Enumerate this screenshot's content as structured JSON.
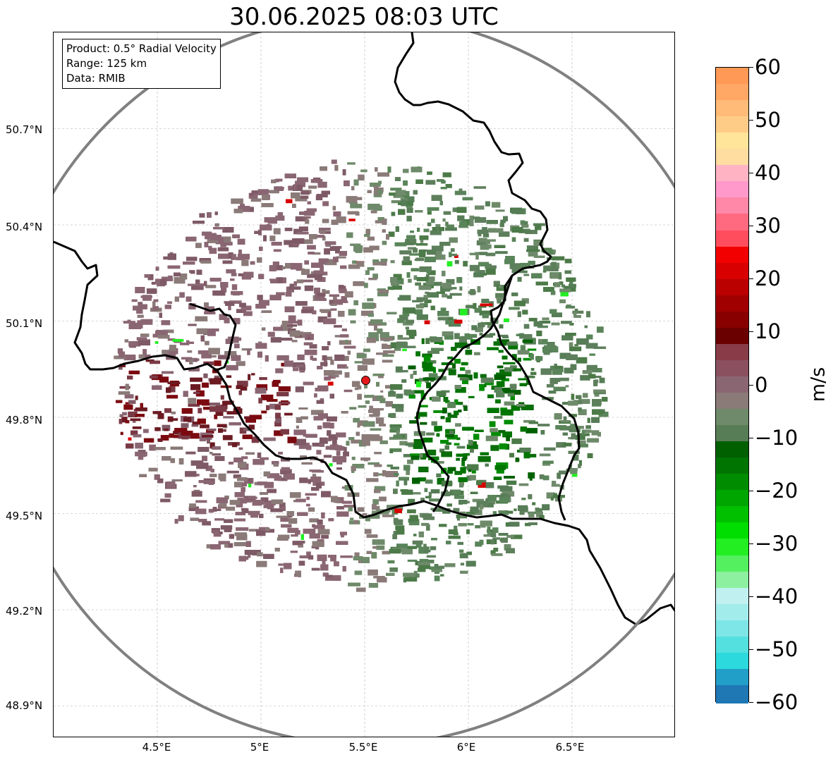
{
  "title": "30.06.2025 08:03 UTC",
  "info": {
    "product": "Product: 0.5° Radial Velocity",
    "range": "Range: 125 km",
    "data": "Data: RMIB"
  },
  "axes": {
    "lat_labels": [
      "50.7°N",
      "50.4°N",
      "50.1°N",
      "49.8°N",
      "49.5°N",
      "49.2°N",
      "48.9°N"
    ],
    "lon_labels": [
      "4.5°E",
      "5°E",
      "5.5°E",
      "6°E",
      "6.5°E"
    ],
    "lon_range": [
      4.0,
      7.0
    ],
    "lat_range": [
      48.8,
      51.0
    ]
  },
  "radar": {
    "site_lon": 5.505,
    "site_lat": 49.915,
    "range_km": 125,
    "site_color": "#e31a1c"
  },
  "colorbar": {
    "unit": "m/s",
    "min": -60,
    "max": 60,
    "ticks": [
      "60",
      "50",
      "40",
      "30",
      "20",
      "10",
      "0",
      "−10",
      "−20",
      "−30",
      "−40",
      "−50",
      "−60"
    ],
    "colors": {
      "cyan_blue": [
        "#1f77b4",
        "#229fc8",
        "#2cd9dc",
        "#55e0e0",
        "#7ee6e6",
        "#a3ecec",
        "#c0f0f0"
      ],
      "greens": [
        "#8cf0a0",
        "#55f060",
        "#22ee22",
        "#00dd00",
        "#00c000",
        "#00a600",
        "#008c00",
        "#007400",
        "#006000"
      ],
      "neutral": [
        "#577d57",
        "#6e8a6a",
        "#8a7a78",
        "#8a6673",
        "#8a5060",
        "#883c48"
      ],
      "reds": [
        "#6b0000",
        "#880000",
        "#a00000",
        "#bb0000",
        "#d80000",
        "#f20000"
      ],
      "pinks": [
        "#ff4d5e",
        "#ff6a80",
        "#ff88a8",
        "#ff99cc",
        "#ffb3c3"
      ],
      "oranges": [
        "#ffdca0",
        "#ffe59a",
        "#ffcc88",
        "#ffbb77",
        "#ffa866",
        "#ff9955"
      ]
    }
  }
}
